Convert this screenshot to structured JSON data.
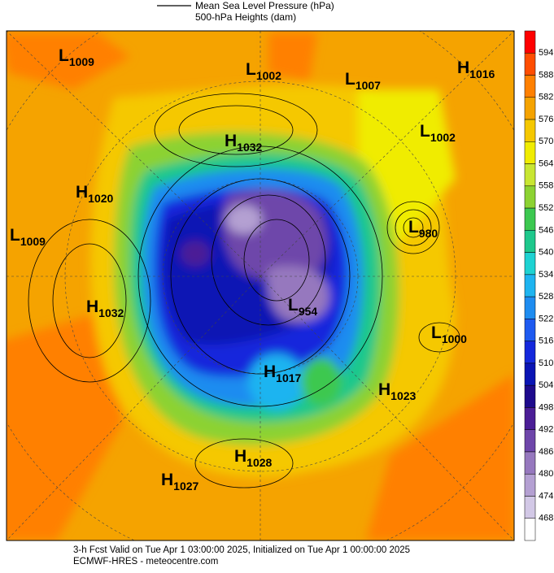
{
  "header": {
    "legend": [
      "Mean Sea Level Pressure (hPa)",
      "500-hPa Heights (dam)"
    ]
  },
  "colorbar": {
    "labels": [
      594,
      588,
      582,
      576,
      570,
      564,
      558,
      552,
      546,
      540,
      534,
      528,
      522,
      516,
      510,
      504,
      498,
      492,
      486,
      480,
      474,
      468
    ],
    "colors": [
      "#ff0000",
      "#ff4d00",
      "#ff8000",
      "#f5a300",
      "#f5c800",
      "#f0ec00",
      "#c8e632",
      "#8cd232",
      "#3cc850",
      "#1ec88c",
      "#1ed2d2",
      "#1eb4f0",
      "#1e8cf0",
      "#1e5af0",
      "#1428dc",
      "#0a14b4",
      "#1e0a8c",
      "#4b1e96",
      "#6e46aa",
      "#9678be",
      "#b4a0d2",
      "#d2c8e6",
      "#ffffff"
    ]
  },
  "centers": [
    {
      "letter": "L",
      "value": 1009
    },
    {
      "letter": "L",
      "value": 1002
    },
    {
      "letter": "L",
      "value": 1007
    },
    {
      "letter": "H",
      "value": 1016
    },
    {
      "letter": "L",
      "value": 1002
    },
    {
      "letter": "H",
      "value": 1032
    },
    {
      "letter": "H",
      "value": 1020
    },
    {
      "letter": "L",
      "value": 1009
    },
    {
      "letter": "L",
      "value": 980
    },
    {
      "letter": "H",
      "value": 1032
    },
    {
      "letter": "L",
      "value": 954
    },
    {
      "letter": "L",
      "value": 1000
    },
    {
      "letter": "H",
      "value": 1017
    },
    {
      "letter": "H",
      "value": 1023
    },
    {
      "letter": "H",
      "value": 1028
    },
    {
      "letter": "H",
      "value": 1027
    }
  ],
  "footer": [
    "3-h Fcst Valid on Tue Apr  1 03:00:00 2025, Initialized on Tue Apr  1 00:00:00 2025",
    "ECMWF-HRES  - meteocentre.com"
  ]
}
